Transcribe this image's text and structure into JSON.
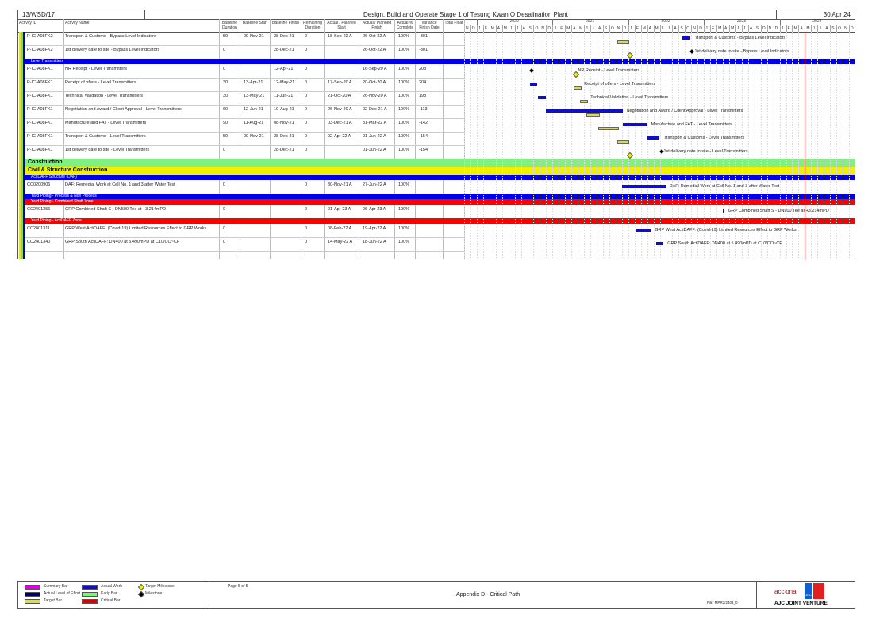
{
  "header": {
    "project_id": "13/WSD/17",
    "title": "Design, Build and Operate Stage 1 of Tesung Kwan O Desalination Plant",
    "data_date": "30 Apr 24"
  },
  "columns": [
    "Activity ID",
    "Activity Name",
    "Baseline Duration",
    "Baseline Start",
    "Baseline Finish",
    "Remaining Duration",
    "Actual / Planned Start",
    "Actual / Planned Finish",
    "Actual % Complete",
    "Variance Finish Date",
    "Total Float"
  ],
  "timeline": {
    "years": [
      "2020",
      "2021",
      "2022",
      "2023",
      "2024"
    ],
    "months": [
      "N",
      "D",
      "J",
      "F",
      "M",
      "A",
      "M",
      "J",
      "J",
      "A",
      "S",
      "O",
      "N",
      "D",
      "J",
      "F",
      "M",
      "A",
      "M",
      "J",
      "J",
      "A",
      "S",
      "O",
      "N",
      "D",
      "J",
      "F",
      "M",
      "A",
      "M",
      "J",
      "J",
      "A",
      "S",
      "O",
      "N",
      "D",
      "J",
      "F",
      "M",
      "A",
      "M",
      "J",
      "J",
      "A",
      "S",
      "O",
      "N",
      "D",
      "J",
      "F",
      "M",
      "A",
      "M",
      "J",
      "J",
      "A",
      "S",
      "O",
      "N",
      "D"
    ],
    "start": "2019-11",
    "data_date_month": 54,
    "colors": {
      "actual": "#1010c0",
      "target": "#d8d860",
      "data_date": "#e00000"
    }
  },
  "rows": [
    {
      "type": "act",
      "id": "P-IC-A08FK2",
      "name": "Transport & Customs - Bypass Level Indicators",
      "bd": "50",
      "bs": "09-Nov-21",
      "bf": "28-Dec-21",
      "rd": "0",
      "as": "18-Sep-22 A",
      "af": "26-Oct-22 A",
      "pc": "100%",
      "vf": "-301",
      "tgt": [
        24.3,
        25.9
      ],
      "act": [
        34.6,
        35.9
      ],
      "label": "Transport & Customs - Bypass Level Indicators"
    },
    {
      "type": "act",
      "id": "P-IC-A08FK2",
      "name": "1st delivery date to site - Bypass Level Indicators",
      "bd": "0",
      "bs": "",
      "bf": "28-Dec-21",
      "rd": "0",
      "as": "",
      "af": "26-Oct-22 A",
      "pc": "100%",
      "vf": "-301",
      "tms": 25.9,
      "ms": 35.9,
      "label": "1st delivery date to site - Bypass Level Indicators"
    },
    {
      "type": "band",
      "label": "Level Transmitters",
      "color": "#0000e0"
    },
    {
      "type": "act",
      "id": "P-IC-A08FK1",
      "name": "NR Receipt - Level Transmitters",
      "bd": "0",
      "bs": "",
      "bf": "12-Apr-21",
      "rd": "0",
      "as": "",
      "af": "16-Sep-20 A",
      "pc": "100%",
      "vf": "208",
      "ms": 10.5,
      "tms": 17.4,
      "label": "NR Receipt - Level Transmitters"
    },
    {
      "type": "act",
      "id": "P-IC-A08FK1",
      "name": "Receipt of offers - Level Transmitters",
      "bd": "30",
      "bs": "13-Apr-21",
      "bf": "12-May-21",
      "rd": "0",
      "as": "17-Sep-20 A",
      "af": "20-Oct-20 A",
      "pc": "100%",
      "vf": "204",
      "tgt": [
        17.4,
        18.4
      ],
      "act": [
        10.5,
        11.6
      ],
      "label": "Receipt of offers - Level Transmitters"
    },
    {
      "type": "act",
      "id": "P-IC-A08FK1",
      "name": "Technical Validation - Level Transmitters",
      "bd": "30",
      "bs": "13-May-21",
      "bf": "11-Jun-21",
      "rd": "0",
      "as": "21-Oct-20 A",
      "af": "26-Nov-20 A",
      "pc": "100%",
      "vf": "198",
      "tgt": [
        18.4,
        19.4
      ],
      "act": [
        11.7,
        12.9
      ],
      "label": "Technical Validation - Level Transmitters"
    },
    {
      "type": "act",
      "id": "P-IC-A08FK1",
      "name": "Negotiation and Award / Client Approval - Level Transmitters",
      "bd": "60",
      "bs": "12-Jun-21",
      "bf": "10-Aug-21",
      "rd": "0",
      "as": "26-Nov-20 A",
      "af": "02-Dec-21 A",
      "pc": "100%",
      "vf": "-113",
      "tgt": [
        19.4,
        21.3
      ],
      "act": [
        12.9,
        25.1
      ],
      "label": "Negotiation and Award / Client Approval - Level Transmitters"
    },
    {
      "type": "act",
      "id": "P-IC-A08FK1",
      "name": "Manufacture and FAT - Level Transmitters",
      "bd": "90",
      "bs": "11-Aug-21",
      "bf": "08-Nov-21",
      "rd": "0",
      "as": "03-Dec-21 A",
      "af": "31-Mar-22 A",
      "pc": "100%",
      "vf": "-142",
      "tgt": [
        21.3,
        24.3
      ],
      "act": [
        25.1,
        29
      ],
      "label": "Manufacture and FAT - Level Transmitters"
    },
    {
      "type": "act",
      "id": "P-IC-A08FK1",
      "name": "Transport & Customs - Level Transmitters",
      "bd": "50",
      "bs": "09-Nov-21",
      "bf": "28-Dec-21",
      "rd": "0",
      "as": "02-Apr-22 A",
      "af": "01-Jun-22 A",
      "pc": "100%",
      "vf": "-154",
      "tgt": [
        24.3,
        25.9
      ],
      "act": [
        29.1,
        31
      ],
      "label": "Transport & Customs - Level Transmitters"
    },
    {
      "type": "act",
      "id": "P-IC-A08FK1",
      "name": "1st delivery date to site - Level Transmitters",
      "bd": "0",
      "bs": "",
      "bf": "28-Dec-21",
      "rd": "0",
      "as": "",
      "af": "01-Jun-22 A",
      "pc": "100%",
      "vf": "-154",
      "tms": 25.9,
      "ms": 31,
      "label": "1st delivery date to site - Level Transmitters"
    },
    {
      "type": "band",
      "label": "Construction",
      "color": "#80f080",
      "big": true
    },
    {
      "type": "band",
      "label": "Civil & Structure Construction",
      "color": "#f0f000",
      "big": true
    },
    {
      "type": "band",
      "label": "ActiDAFF Structure (DAF)",
      "color": "#0000e0"
    },
    {
      "type": "act",
      "id": "CC0200906",
      "name": "DAF: Remedial Work at Cell No. 1 and 3 after Water Test",
      "bd": "0",
      "bs": "",
      "bf": "",
      "rd": "0",
      "as": "30-Nov-21 A",
      "af": "27-Jun-22 A",
      "pc": "100%",
      "vf": "",
      "act": [
        25,
        31.9
      ],
      "label": "DAF: Remedial Work at Cell No. 1 and 3 after Water Test"
    },
    {
      "type": "band",
      "label": "Yard Piping - Process & Non Process",
      "color": "#0000e0"
    },
    {
      "type": "band",
      "label": "Yard Piping - Combined Shaft Zone",
      "color": "#ff0000"
    },
    {
      "type": "act",
      "id": "CC2401356",
      "name": "GRP Combined Shaft S - DN500 Tee at +3.214mPD",
      "bd": "0",
      "bs": "",
      "bf": "",
      "rd": "0",
      "as": "01-Apr-23 A",
      "af": "06-Apr-23 A",
      "pc": "100%",
      "vf": "",
      "act": [
        41,
        41.2
      ],
      "label": "GRP Combined Shaft S - DN500 Tee at +3.214mPD"
    },
    {
      "type": "band",
      "label": "Yard Piping - ActiDAFF Zone",
      "color": "#ff0000"
    },
    {
      "type": "act",
      "id": "CC2401311",
      "name": "GRP West ActiDAFF: (Covid-19) Limited Resources Effect to GRP Works",
      "bd": "0",
      "bs": "",
      "bf": "",
      "rd": "0",
      "as": "08-Feb-22 A",
      "af": "19-Apr-22 A",
      "pc": "100%",
      "vf": "",
      "act": [
        27.3,
        29.6
      ],
      "label": "GRP West ActiDAFF: (Covid-19) Limited Resources Effect to GRP Works"
    },
    {
      "type": "act",
      "id": "CC2401340",
      "name": "GRP South ActiDAFF: DN400 at 5.490mPD at C10/CO~CF",
      "bd": "0",
      "bs": "",
      "bf": "",
      "rd": "0",
      "as": "14-May-22 A",
      "af": "18-Jun-22 A",
      "pc": "100%",
      "vf": "",
      "act": [
        30.4,
        31.6
      ],
      "label": "GRP South ActiDAFF: DN400 at 5.490mPD at C10/CO~CF"
    }
  ],
  "footer": {
    "legend": [
      {
        "label": "Summary Bar",
        "color": "#e000e0"
      },
      {
        "label": "Actual Level of Effort",
        "color": "#000060"
      },
      {
        "label": "Target Bar",
        "color": "#d8d860"
      },
      {
        "label": "Actual Work",
        "color": "#1010c0"
      },
      {
        "label": "Early Bar",
        "color": "#80f080"
      },
      {
        "label": "Critical Bar",
        "color": "#e00000"
      },
      {
        "label": "Target Milestone"
      },
      {
        "label": "Milestone"
      }
    ],
    "page": "Page 5 of 5",
    "appendix": "Appendix D - Critical Path",
    "file": "File: MPR2/2404_0",
    "logo_text": "acciona",
    "logo_jec": "JEC",
    "venture": "AJC JOINT VENTURE"
  }
}
